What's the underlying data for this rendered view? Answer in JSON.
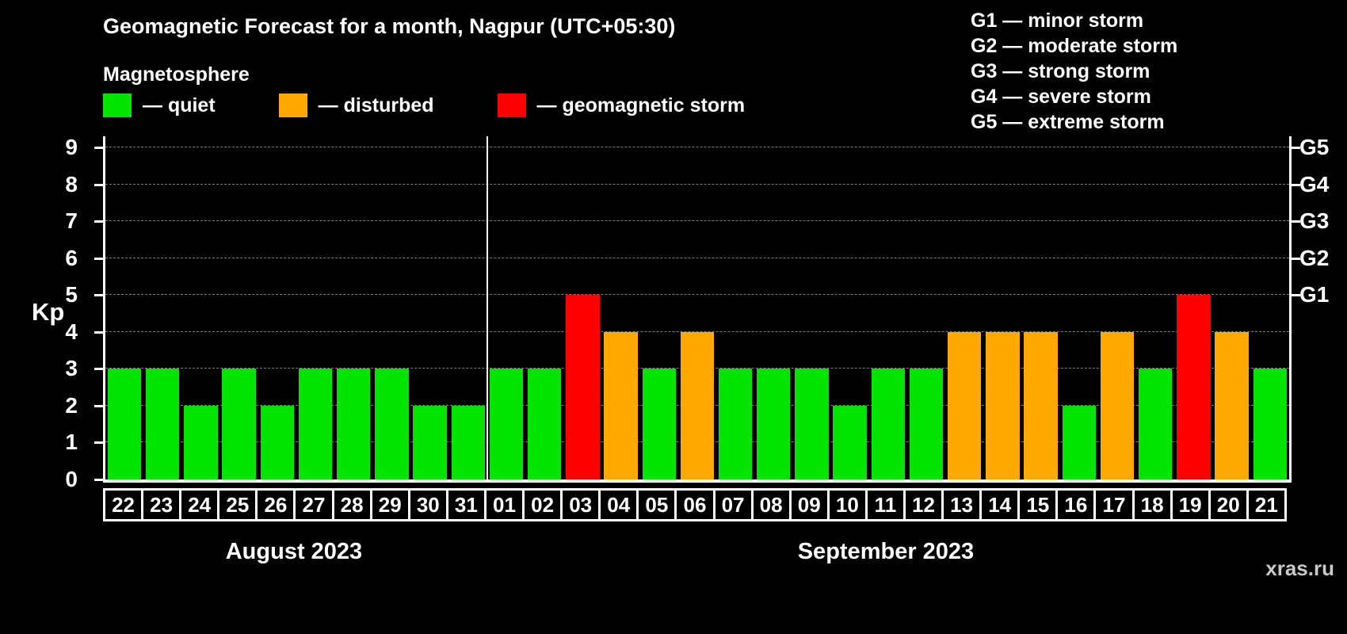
{
  "page": {
    "background": "#000000",
    "watermark": "xras.ru"
  },
  "legend": {
    "heading": "Magnetosphere",
    "items": [
      {
        "key": "quiet",
        "label": "— quiet",
        "color": "#00e400"
      },
      {
        "key": "disturbed",
        "label": "— disturbed",
        "color": "#ffa800"
      },
      {
        "key": "storm",
        "label": "— geomagnetic storm",
        "color": "#ff0000"
      }
    ]
  },
  "g_scale_legend": {
    "lines": [
      "G1 — minor storm",
      "G2 — moderate storm",
      "G3 — strong storm",
      "G4 — severe storm",
      "G5 — extreme storm"
    ]
  },
  "chart_data": {
    "type": "bar",
    "title": "Geomagnetic Forecast for a month, Nagpur (UTC+05:30)",
    "ylabel": "Kp",
    "xlabel": "",
    "ylim": [
      0,
      9.3
    ],
    "yticks": [
      0,
      1,
      2,
      3,
      4,
      5,
      6,
      7,
      8,
      9
    ],
    "grid": true,
    "right_axis": [
      {
        "label": "G5",
        "value": 9
      },
      {
        "label": "G4",
        "value": 8
      },
      {
        "label": "G3",
        "value": 7
      },
      {
        "label": "G2",
        "value": 6
      },
      {
        "label": "G1",
        "value": 5
      }
    ],
    "colors": {
      "quiet": "#00e400",
      "disturbed": "#ffa800",
      "storm": "#ff0000"
    },
    "months": [
      {
        "label": "August 2023",
        "days": [
          {
            "date": "22",
            "kp": 3,
            "level": "quiet"
          },
          {
            "date": "23",
            "kp": 3,
            "level": "quiet"
          },
          {
            "date": "24",
            "kp": 2,
            "level": "quiet"
          },
          {
            "date": "25",
            "kp": 3,
            "level": "quiet"
          },
          {
            "date": "26",
            "kp": 2,
            "level": "quiet"
          },
          {
            "date": "27",
            "kp": 3,
            "level": "quiet"
          },
          {
            "date": "28",
            "kp": 3,
            "level": "quiet"
          },
          {
            "date": "29",
            "kp": 3,
            "level": "quiet"
          },
          {
            "date": "30",
            "kp": 2,
            "level": "quiet"
          },
          {
            "date": "31",
            "kp": 2,
            "level": "quiet"
          }
        ]
      },
      {
        "label": "September 2023",
        "days": [
          {
            "date": "01",
            "kp": 3,
            "level": "quiet"
          },
          {
            "date": "02",
            "kp": 3,
            "level": "quiet"
          },
          {
            "date": "03",
            "kp": 5,
            "level": "storm"
          },
          {
            "date": "04",
            "kp": 4,
            "level": "disturbed"
          },
          {
            "date": "05",
            "kp": 3,
            "level": "quiet"
          },
          {
            "date": "06",
            "kp": 4,
            "level": "disturbed"
          },
          {
            "date": "07",
            "kp": 3,
            "level": "quiet"
          },
          {
            "date": "08",
            "kp": 3,
            "level": "quiet"
          },
          {
            "date": "09",
            "kp": 3,
            "level": "quiet"
          },
          {
            "date": "10",
            "kp": 2,
            "level": "quiet"
          },
          {
            "date": "11",
            "kp": 3,
            "level": "quiet"
          },
          {
            "date": "12",
            "kp": 3,
            "level": "quiet"
          },
          {
            "date": "13",
            "kp": 4,
            "level": "disturbed"
          },
          {
            "date": "14",
            "kp": 4,
            "level": "disturbed"
          },
          {
            "date": "15",
            "kp": 4,
            "level": "disturbed"
          },
          {
            "date": "16",
            "kp": 2,
            "level": "quiet"
          },
          {
            "date": "17",
            "kp": 4,
            "level": "disturbed"
          },
          {
            "date": "18",
            "kp": 3,
            "level": "quiet"
          },
          {
            "date": "19",
            "kp": 5,
            "level": "storm"
          },
          {
            "date": "20",
            "kp": 4,
            "level": "disturbed"
          },
          {
            "date": "21",
            "kp": 3,
            "level": "quiet"
          }
        ]
      }
    ]
  }
}
